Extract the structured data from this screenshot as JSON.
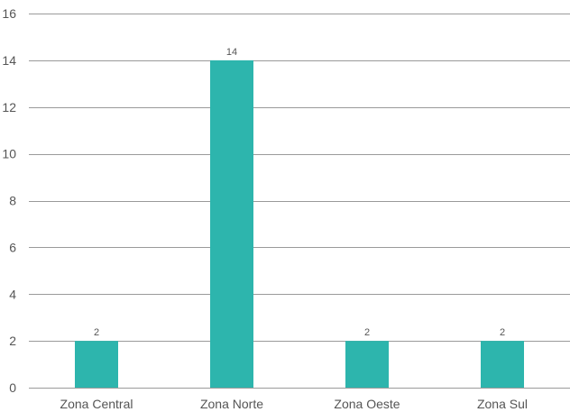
{
  "colors": {
    "bar": "#2db5ad",
    "grid": "#9a9a9a",
    "text": "#555555"
  },
  "chart_data": {
    "type": "bar",
    "title": "",
    "xlabel": "",
    "ylabel": "",
    "categories": [
      "Zona Central",
      "Zona Norte",
      "Zona Oeste",
      "Zona Sul"
    ],
    "values": [
      2,
      14,
      2,
      2
    ],
    "data_labels": [
      "2",
      "14",
      "2",
      "2"
    ],
    "ylim": [
      0,
      16
    ],
    "y_ticks": [
      0,
      2,
      4,
      6,
      8,
      10,
      12,
      14,
      16
    ],
    "y_tick_labels": [
      "0",
      "2",
      "4",
      "6",
      "8",
      "10",
      "12",
      "14",
      "16"
    ],
    "grid": true,
    "legend": "none"
  }
}
